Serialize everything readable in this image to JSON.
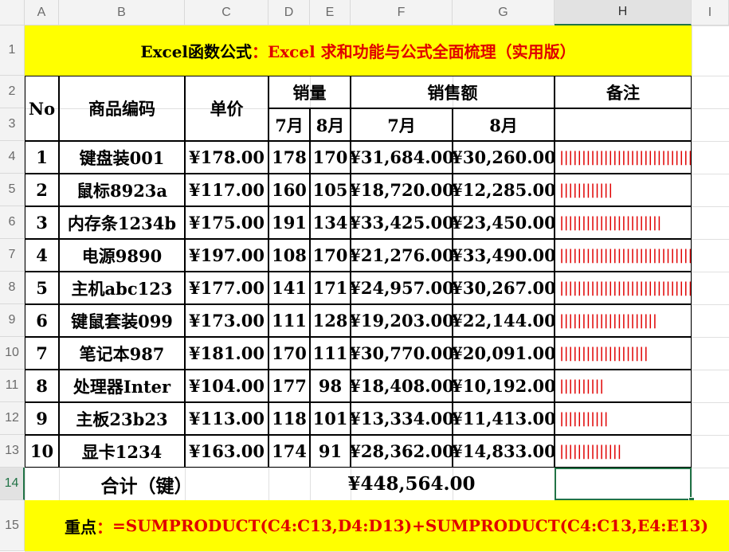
{
  "columns": [
    "A",
    "B",
    "C",
    "D",
    "E",
    "F",
    "G",
    "H",
    "I"
  ],
  "rows": [
    "1",
    "2",
    "3",
    "4",
    "5",
    "6",
    "7",
    "8",
    "9",
    "10",
    "11",
    "12",
    "13",
    "14",
    "15"
  ],
  "title": {
    "prefix": "Excel函数公式",
    "separator": "：",
    "main": "Excel 求和功能与公式全面梳理（实用版）"
  },
  "headers": {
    "no": "No",
    "code": "商品编码",
    "price": "单价",
    "qty": "销量",
    "amount": "销售额",
    "note": "备注",
    "jul": "7月",
    "aug": "8月"
  },
  "table": [
    {
      "no": "1",
      "code": "键盘装001",
      "price": "¥178.00",
      "q7": "178",
      "q8": "170",
      "a7": "¥31,684.00",
      "a8": "¥30,260.00",
      "bars": 30
    },
    {
      "no": "2",
      "code": "鼠标8923a",
      "price": "¥117.00",
      "q7": "160",
      "q8": "105",
      "a7": "¥18,720.00",
      "a8": "¥12,285.00",
      "bars": 12
    },
    {
      "no": "3",
      "code": "内存条1234b",
      "price": "¥175.00",
      "q7": "191",
      "q8": "134",
      "a7": "¥33,425.00",
      "a8": "¥23,450.00",
      "bars": 23
    },
    {
      "no": "4",
      "code": "电源9890",
      "price": "¥197.00",
      "q7": "108",
      "q8": "170",
      "a7": "¥21,276.00",
      "a8": "¥33,490.00",
      "bars": 33
    },
    {
      "no": "5",
      "code": "主机abc123",
      "price": "¥177.00",
      "q7": "141",
      "q8": "171",
      "a7": "¥24,957.00",
      "a8": "¥30,267.00",
      "bars": 30
    },
    {
      "no": "6",
      "code": "键鼠套装099",
      "price": "¥173.00",
      "q7": "111",
      "q8": "128",
      "a7": "¥19,203.00",
      "a8": "¥22,144.00",
      "bars": 22
    },
    {
      "no": "7",
      "code": "笔记本987",
      "price": "¥181.00",
      "q7": "170",
      "q8": "111",
      "a7": "¥30,770.00",
      "a8": "¥20,091.00",
      "bars": 20
    },
    {
      "no": "8",
      "code": "处理器Inter",
      "price": "¥104.00",
      "q7": "177",
      "q8": "98",
      "a7": "¥18,408.00",
      "a8": "¥10,192.00",
      "bars": 10
    },
    {
      "no": "9",
      "code": "主板23b23",
      "price": "¥113.00",
      "q7": "118",
      "q8": "101",
      "a7": "¥13,334.00",
      "a8": "¥11,413.00",
      "bars": 11
    },
    {
      "no": "10",
      "code": "显卡1234",
      "price": "¥163.00",
      "q7": "174",
      "q8": "91",
      "a7": "¥28,362.00",
      "a8": "¥14,833.00",
      "bars": 14
    }
  ],
  "total": {
    "label": "合计（键）",
    "value": "¥448,564.00"
  },
  "footer": {
    "prefix": "重点",
    "separator": "：",
    "formula": "=SUMPRODUCT(C4:C13,D4:D13)+SUMPRODUCT(C4:C13,E4:E13)"
  },
  "colors": {
    "highlight": "#ffff00",
    "accent_text": "#e00000",
    "selection": "#217346"
  }
}
